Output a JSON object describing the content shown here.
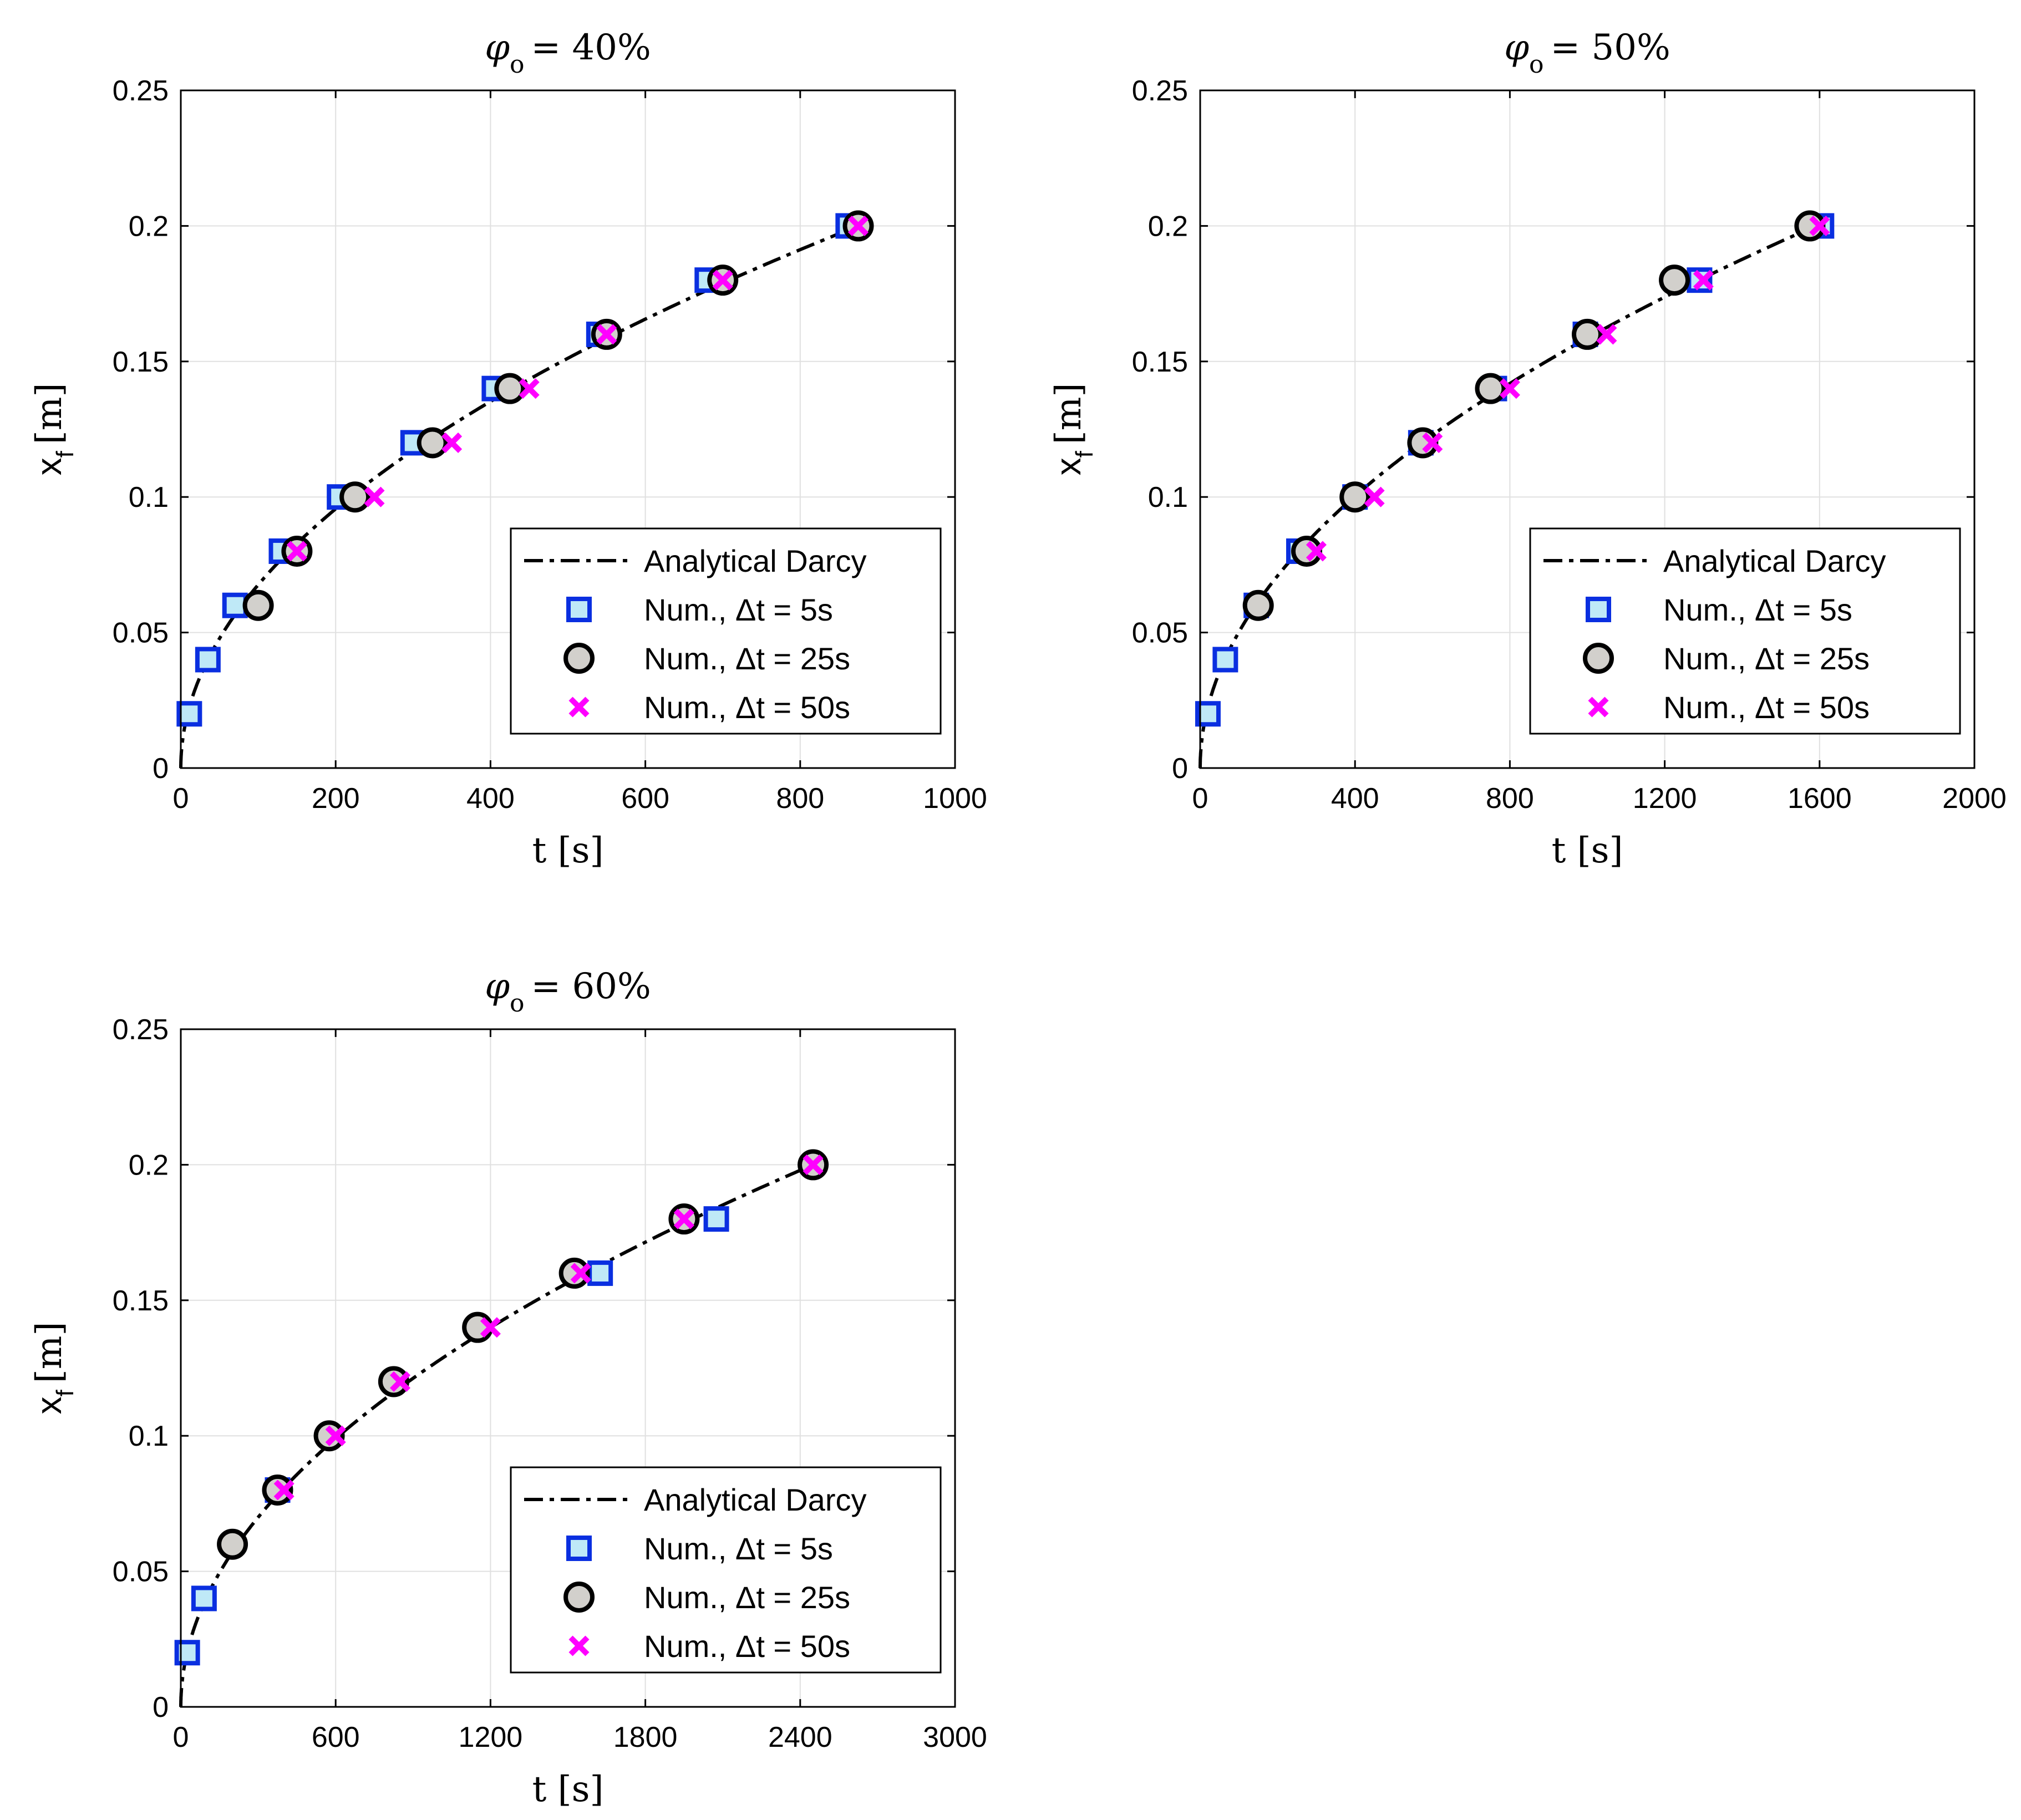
{
  "chart_data": [
    {
      "type": "scatter",
      "title_symbol": "φ",
      "title_subscript": "o",
      "title_value": "= 40%",
      "xlabel": "t [s]",
      "ylabel": "x",
      "ylabel_subscript": "f",
      "ylabel_unit": "[m]",
      "xlim": [
        0,
        1000
      ],
      "ylim": [
        0,
        0.25
      ],
      "xticks": [
        0,
        200,
        400,
        600,
        800,
        1000
      ],
      "xtick_labels": [
        "0",
        "200",
        "400",
        "600",
        "800",
        "1000"
      ],
      "yticks": [
        0,
        0.05,
        0.1,
        0.15,
        0.2,
        0.25
      ],
      "ytick_labels": [
        "0",
        "0.05",
        "0.1",
        "0.15",
        "0.2",
        "0.25"
      ],
      "grid": true,
      "legend_position": "bottom-right",
      "curve": {
        "name": "Analytical Darcy",
        "t_end": 875,
        "x_end": 0.2
      },
      "series": [
        {
          "name": "Num., Δt = 5s",
          "marker": "square",
          "x": [
            11,
            35,
            70,
            130,
            205,
            300,
            405,
            540,
            680,
            862
          ],
          "y": [
            0.02,
            0.04,
            0.06,
            0.08,
            0.1,
            0.12,
            0.14,
            0.16,
            0.18,
            0.2
          ]
        },
        {
          "name": "Num., Δt = 25s",
          "marker": "circle",
          "x": [
            100,
            150,
            225,
            325,
            425,
            550,
            700,
            875
          ],
          "y": [
            0.06,
            0.08,
            0.1,
            0.12,
            0.14,
            0.16,
            0.18,
            0.2
          ]
        },
        {
          "name": "Num., Δt = 50s",
          "marker": "x",
          "x": [
            150,
            250,
            350,
            450,
            550,
            700,
            875
          ],
          "y": [
            0.08,
            0.1,
            0.12,
            0.14,
            0.16,
            0.18,
            0.2
          ]
        }
      ]
    },
    {
      "type": "scatter",
      "title_symbol": "φ",
      "title_subscript": "o",
      "title_value": "= 50%",
      "xlabel": "t [s]",
      "ylabel": "x",
      "ylabel_subscript": "f",
      "ylabel_unit": "[m]",
      "xlim": [
        0,
        2000
      ],
      "ylim": [
        0,
        0.25
      ],
      "xticks": [
        0,
        400,
        800,
        1200,
        1600,
        2000
      ],
      "xtick_labels": [
        "0",
        "400",
        "800",
        "1200",
        "1600",
        "2000"
      ],
      "yticks": [
        0,
        0.05,
        0.1,
        0.15,
        0.2,
        0.25
      ],
      "ytick_labels": [
        "0",
        "0.05",
        "0.1",
        "0.15",
        "0.2",
        "0.25"
      ],
      "grid": true,
      "legend_position": "bottom-right",
      "curve": {
        "name": "Analytical Darcy",
        "t_end": 1590,
        "x_end": 0.2
      },
      "series": [
        {
          "name": "Num., Δt = 5s",
          "marker": "square",
          "x": [
            20,
            65,
            145,
            255,
            400,
            570,
            760,
            995,
            1290,
            1605
          ],
          "y": [
            0.02,
            0.04,
            0.06,
            0.08,
            0.1,
            0.12,
            0.14,
            0.16,
            0.18,
            0.2
          ]
        },
        {
          "name": "Num., Δt = 25s",
          "marker": "circle",
          "x": [
            150,
            275,
            400,
            575,
            750,
            1000,
            1225,
            1575
          ],
          "y": [
            0.06,
            0.08,
            0.1,
            0.12,
            0.14,
            0.16,
            0.18,
            0.2
          ]
        },
        {
          "name": "Num., Δt = 50s",
          "marker": "x",
          "x": [
            300,
            450,
            600,
            800,
            1050,
            1300,
            1600
          ],
          "y": [
            0.08,
            0.1,
            0.12,
            0.14,
            0.16,
            0.18,
            0.2
          ]
        }
      ]
    },
    {
      "type": "scatter",
      "title_symbol": "φ",
      "title_subscript": "o",
      "title_value": "= 60%",
      "xlabel": "t [s]",
      "ylabel": "x",
      "ylabel_subscript": "f",
      "ylabel_unit": "[m]",
      "xlim": [
        0,
        3000
      ],
      "ylim": [
        0,
        0.25
      ],
      "xticks": [
        0,
        600,
        1200,
        1800,
        2400,
        3000
      ],
      "xtick_labels": [
        "0",
        "600",
        "1200",
        "1800",
        "2400",
        "3000"
      ],
      "yticks": [
        0,
        0.05,
        0.1,
        0.15,
        0.2,
        0.25
      ],
      "ytick_labels": [
        "0",
        "0.05",
        "0.1",
        "0.15",
        "0.2",
        "0.25"
      ],
      "grid": true,
      "legend_position": "bottom-right",
      "curve": {
        "name": "Analytical Darcy",
        "t_end": 2450,
        "x_end": 0.2
      },
      "series": [
        {
          "name": "Num., Δt = 5s",
          "marker": "square",
          "x": [
            25,
            90,
            375,
            1625,
            2075
          ],
          "y": [
            0.02,
            0.04,
            0.08,
            0.16,
            0.18
          ]
        },
        {
          "name": "Num., Δt = 25s",
          "marker": "circle",
          "x": [
            200,
            375,
            575,
            825,
            1150,
            1525,
            1950,
            2450
          ],
          "y": [
            0.06,
            0.08,
            0.1,
            0.12,
            0.14,
            0.16,
            0.18,
            0.2
          ]
        },
        {
          "name": "Num., Δt = 50s",
          "marker": "x",
          "x": [
            400,
            600,
            850,
            1200,
            1550,
            1950,
            2450
          ],
          "y": [
            0.08,
            0.1,
            0.12,
            0.14,
            0.16,
            0.18,
            0.2
          ]
        }
      ]
    }
  ],
  "colors": {
    "square_fill": "#bfe9f7",
    "square_edge": "#0a2fe0",
    "circle_fill": "#d2d0cc",
    "circle_edge": "#000000",
    "x_marker": "#ff00ff",
    "curve": "#000000"
  }
}
